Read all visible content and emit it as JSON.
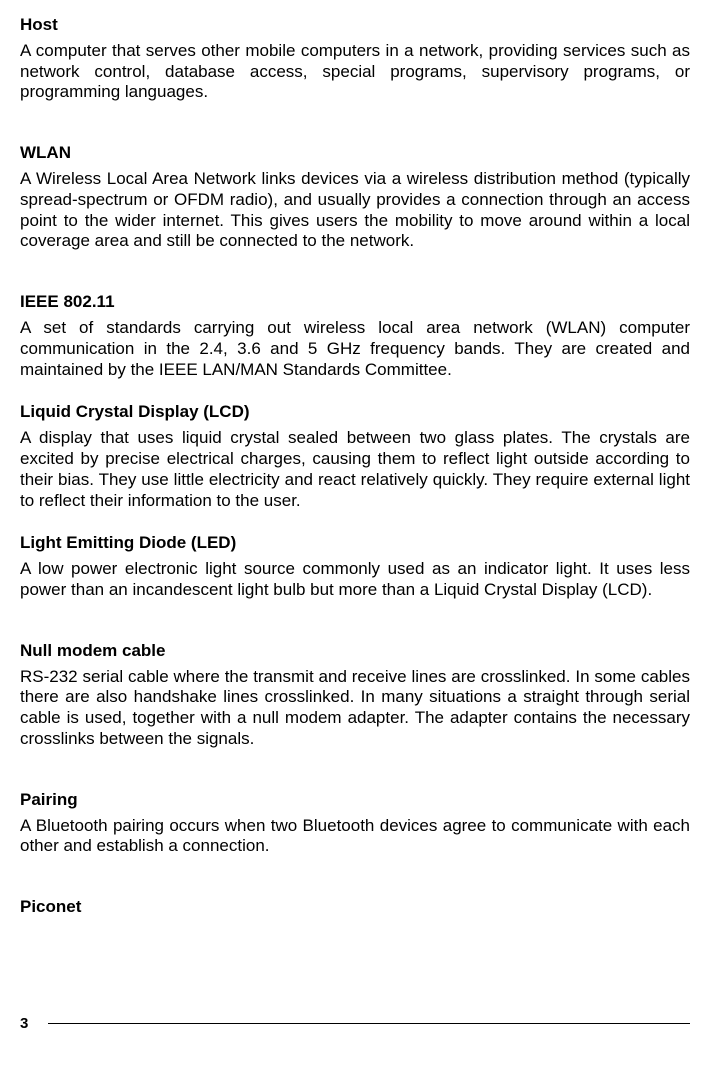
{
  "entries": [
    {
      "title": "Host",
      "body": "A computer that serves other mobile computers in a network, providing services such as network control, database access, special programs, supervisory programs, or programming languages.",
      "gap": "large"
    },
    {
      "title": "WLAN",
      "body": "A Wireless Local Area Network links devices via a wireless distribution method (typically spread-spectrum or OFDM radio), and usually provides a connection through an access point to the wider internet. This gives users the mobility to move around within a local coverage area and still be connected to the network.",
      "gap": "large"
    },
    {
      "title": "IEEE 802.11",
      "body": "A set of standards carrying out wireless local area network (WLAN) computer communication in the 2.4, 3.6 and 5 GHz frequency bands. They are created and maintained by the IEEE LAN/MAN Standards Committee.",
      "gap": "small"
    },
    {
      "title": "Liquid Crystal Display (LCD)",
      "body": "A display that uses liquid crystal sealed between two glass plates. The crystals are excited by precise electrical charges, causing them to reflect light outside according to their bias. They use little electricity and react relatively quickly. They require external light to reflect their information to the user.",
      "gap": "small"
    },
    {
      "title": "Light Emitting Diode (LED)",
      "body": "A low power electronic light source commonly used as an indicator light. It uses less power than an incandescent light bulb but more than a Liquid Crystal Display (LCD).",
      "gap": "large"
    },
    {
      "title": "Null modem cable",
      "body": "RS-232 serial cable where the transmit and receive lines are crosslinked. In some cables there are also handshake lines crosslinked. In many situations a straight through serial cable is used, together with a null modem adapter. The adapter contains the necessary crosslinks between the signals.",
      "gap": "large"
    },
    {
      "title": "Pairing",
      "body": "A Bluetooth pairing occurs when two Bluetooth devices agree to communicate with each other and establish a connection.",
      "gap": "large"
    },
    {
      "title": "Piconet",
      "body": "",
      "gap": "small"
    }
  ],
  "page_number": "3",
  "styles": {
    "font_family": "Arial",
    "title_fontsize": 17,
    "body_fontsize": 17,
    "text_color": "#000000",
    "background_color": "#ffffff",
    "line_height": 1.22
  }
}
